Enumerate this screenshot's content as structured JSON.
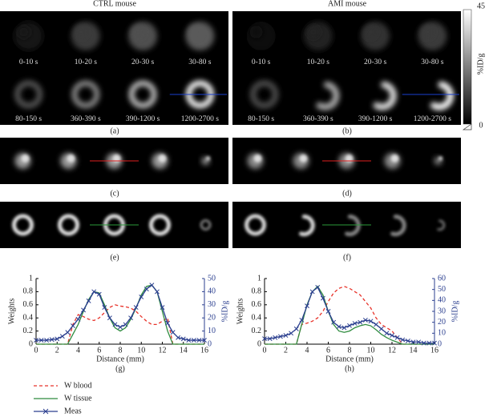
{
  "figure": {
    "panels": [
      {
        "title": "CTRL mouse",
        "label": "(a)",
        "frames": [
          "0-10 s",
          "10-20 s",
          "20-30 s",
          "30-80 s",
          "80-150 s",
          "360-390 s",
          "390-1200 s",
          "1200-2700 s"
        ]
      },
      {
        "title": "AMI mouse",
        "label": "(b)",
        "frames": [
          "0-10 s",
          "10-20 s",
          "20-30 s",
          "30-80 s",
          "80-150 s",
          "360-390 s",
          "390-1200 s",
          "1200-2700 s"
        ]
      }
    ],
    "colorbar": {
      "max": 45,
      "min": 0,
      "unit": "%ID/g"
    },
    "row_labels": [
      "(c)",
      "(d)",
      "(e)",
      "(f)"
    ]
  },
  "chart_data": [
    {
      "type": "line",
      "caption": "(g)",
      "xlabel": "Distance (mm)",
      "ylabel": "Weights",
      "y2label": "%ID/g",
      "xlim": [
        0,
        16
      ],
      "xticks": [
        0,
        2,
        4,
        6,
        8,
        10,
        12,
        14,
        16
      ],
      "ylim": [
        0,
        1
      ],
      "yticks": [
        0,
        0.2,
        0.4,
        0.6,
        0.8,
        1
      ],
      "y2lim": [
        0,
        50
      ],
      "y2ticks": [
        0,
        10,
        20,
        30,
        40,
        50
      ],
      "x": [
        0,
        0.5,
        1,
        1.5,
        2,
        2.5,
        3,
        3.5,
        4,
        4.5,
        5,
        5.5,
        6,
        6.5,
        7,
        7.5,
        8,
        8.5,
        9,
        9.5,
        10,
        10.5,
        11,
        11.5,
        12,
        12.5,
        13,
        13.5,
        14,
        14.5,
        15,
        15.5,
        16
      ],
      "series": [
        {
          "name": "W blood",
          "color": "#e8332a",
          "dash": true,
          "values": [
            0,
            0,
            0,
            0,
            0,
            0,
            0,
            0.3,
            0.45,
            0.42,
            0.38,
            0.36,
            0.4,
            0.48,
            0.56,
            0.6,
            0.58,
            0.57,
            0.55,
            0.5,
            0.42,
            0.35,
            0.3,
            0.3,
            0.35,
            0.4,
            0,
            0,
            0,
            0,
            0,
            0,
            0
          ]
        },
        {
          "name": "W tissue",
          "color": "#2e8b3e",
          "values": [
            0,
            0,
            0,
            0,
            0,
            0,
            0,
            0.15,
            0.3,
            0.5,
            0.68,
            0.8,
            0.78,
            0.6,
            0.4,
            0.25,
            0.2,
            0.25,
            0.38,
            0.55,
            0.75,
            0.88,
            0.9,
            0.8,
            0.5,
            0.2,
            0,
            0,
            0,
            0,
            0,
            0,
            0
          ]
        },
        {
          "name": "Meas",
          "color": "#2b3f8f",
          "axis": "y2",
          "marker": "x",
          "values": [
            3,
            3,
            3,
            3.5,
            4,
            6,
            9,
            14,
            19,
            26,
            33,
            40,
            38,
            28,
            20,
            15,
            13,
            15,
            20,
            28,
            36,
            42,
            45,
            40,
            28,
            16,
            9,
            5,
            4,
            3,
            3,
            3,
            3
          ]
        }
      ]
    },
    {
      "type": "line",
      "caption": "(h)",
      "xlabel": "Distance (mm)",
      "ylabel": "Weights",
      "y2label": "%ID/g",
      "xlim": [
        0,
        16
      ],
      "xticks": [
        0,
        2,
        4,
        6,
        8,
        10,
        12,
        14,
        16
      ],
      "ylim": [
        0,
        1
      ],
      "yticks": [
        0,
        0.2,
        0.4,
        0.6,
        0.8,
        1
      ],
      "y2lim": [
        0,
        60
      ],
      "y2ticks": [
        0,
        10,
        20,
        30,
        40,
        50,
        60
      ],
      "x": [
        0,
        0.5,
        1,
        1.5,
        2,
        2.5,
        3,
        3.5,
        4,
        4.5,
        5,
        5.5,
        6,
        6.5,
        7,
        7.5,
        8,
        8.5,
        9,
        9.5,
        10,
        10.5,
        11,
        11.5,
        12,
        12.5,
        13,
        13.5,
        14,
        14.5,
        15,
        15.5,
        16
      ],
      "series": [
        {
          "name": "W blood",
          "color": "#e8332a",
          "dash": true,
          "values": [
            0,
            0,
            0,
            0,
            0,
            0,
            0,
            0.3,
            0.32,
            0.35,
            0.4,
            0.5,
            0.65,
            0.78,
            0.85,
            0.88,
            0.85,
            0.8,
            0.75,
            0.65,
            0.55,
            0.4,
            0.3,
            0.25,
            0.2,
            0.1,
            0,
            0,
            0,
            0,
            0,
            0,
            0
          ]
        },
        {
          "name": "W tissue",
          "color": "#2e8b3e",
          "values": [
            0,
            0,
            0,
            0,
            0,
            0,
            0,
            0.3,
            0.6,
            0.8,
            0.88,
            0.75,
            0.5,
            0.3,
            0.2,
            0.18,
            0.2,
            0.25,
            0.28,
            0.3,
            0.28,
            0.22,
            0.15,
            0.1,
            0.06,
            0.03,
            0,
            0,
            0,
            0,
            0,
            0,
            0
          ]
        },
        {
          "name": "Meas",
          "color": "#2b3f8f",
          "axis": "y2",
          "marker": "x",
          "values": [
            5,
            5,
            6,
            7,
            8,
            10,
            14,
            22,
            35,
            48,
            52,
            42,
            30,
            20,
            16,
            15,
            17,
            19,
            20,
            22,
            21,
            18,
            14,
            10,
            8,
            6,
            4,
            3,
            2,
            2,
            1,
            1,
            1
          ]
        }
      ]
    }
  ]
}
